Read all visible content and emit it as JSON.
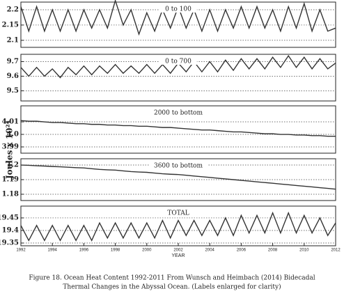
{
  "ylabel": "Joules x 10²⁴",
  "caption": [
    "Figure 18. Ocean Heat Content 1992-2011 From Wunsch and Heimbach (2014) Bidecadal",
    "Thermal Changes in the Abyssal Ocean.  (Labels enlarged for clarity)"
  ],
  "chart_data": [
    {
      "type": "line",
      "title": "0 to 100",
      "color": "#333333",
      "grid": true,
      "x": [
        1992,
        1992.5,
        1993,
        1993.5,
        1994,
        1994.5,
        1995,
        1995.5,
        1996,
        1996.5,
        1997,
        1997.5,
        1998,
        1998.5,
        1999,
        1999.5,
        2000,
        2000.5,
        2001,
        2001.5,
        2002,
        2002.5,
        2003,
        2003.5,
        2004,
        2004.5,
        2005,
        2005.5,
        2006,
        2006.5,
        2007,
        2007.5,
        2008,
        2008.5,
        2009,
        2009.5,
        2010,
        2010.5,
        2011,
        2011.5,
        2012
      ],
      "values": [
        2.21,
        2.13,
        2.21,
        2.13,
        2.2,
        2.13,
        2.2,
        2.13,
        2.2,
        2.14,
        2.2,
        2.14,
        2.23,
        2.15,
        2.2,
        2.12,
        2.19,
        2.13,
        2.2,
        2.14,
        2.21,
        2.14,
        2.2,
        2.13,
        2.2,
        2.13,
        2.2,
        2.14,
        2.21,
        2.14,
        2.21,
        2.14,
        2.2,
        2.13,
        2.21,
        2.14,
        2.22,
        2.13,
        2.2,
        2.13,
        2.14
      ],
      "xlim": [
        1992,
        2012
      ],
      "ylim": [
        2.077,
        2.225
      ],
      "yticks": [
        2.1,
        2.15,
        2.2
      ]
    },
    {
      "type": "line",
      "title": "0 to 700",
      "color": "#333333",
      "grid": true,
      "x": [
        1992,
        1992.5,
        1993,
        1993.5,
        1994,
        1994.5,
        1995,
        1995.5,
        1996,
        1996.5,
        1997,
        1997.5,
        1998,
        1998.5,
        1999,
        1999.5,
        2000,
        2000.5,
        2001,
        2001.5,
        2002,
        2002.5,
        2003,
        2003.5,
        2004,
        2004.5,
        2005,
        2005.5,
        2006,
        2006.5,
        2007,
        2007.5,
        2008,
        2008.5,
        2009,
        2009.5,
        2010,
        2010.5,
        2011,
        2011.5,
        2012
      ],
      "values": [
        9.66,
        9.6,
        9.66,
        9.6,
        9.65,
        9.59,
        9.66,
        9.61,
        9.67,
        9.61,
        9.67,
        9.62,
        9.68,
        9.62,
        9.67,
        9.62,
        9.68,
        9.62,
        9.68,
        9.62,
        9.69,
        9.63,
        9.7,
        9.63,
        9.7,
        9.63,
        9.71,
        9.64,
        9.72,
        9.65,
        9.72,
        9.65,
        9.73,
        9.66,
        9.74,
        9.66,
        9.73,
        9.65,
        9.72,
        9.65,
        9.69
      ],
      "xlim": [
        1992,
        2012
      ],
      "ylim": [
        9.43,
        9.75
      ],
      "yticks": [
        9.5,
        9.6,
        9.7
      ]
    },
    {
      "type": "line",
      "title": "2000 to bottom",
      "color": "#333333",
      "grid": true,
      "x": [
        1992,
        1992.5,
        1993,
        1993.5,
        1994,
        1994.5,
        1995,
        1995.5,
        1996,
        1996.5,
        1997,
        1997.5,
        1998,
        1998.5,
        1999,
        1999.5,
        2000,
        2000.5,
        2001,
        2001.5,
        2002,
        2002.5,
        2003,
        2003.5,
        2004,
        2004.5,
        2005,
        2005.5,
        2006,
        2006.5,
        2007,
        2007.5,
        2008,
        2008.5,
        2009,
        2009.5,
        2010,
        2010.5,
        2011,
        2011.5,
        2012
      ],
      "values": [
        4.011,
        4.0105,
        4.0105,
        4.01,
        4.0095,
        4.0095,
        4.009,
        4.0085,
        4.0085,
        4.008,
        4.008,
        4.0075,
        4.0075,
        4.007,
        4.007,
        4.0065,
        4.0065,
        4.006,
        4.0055,
        4.0055,
        4.005,
        4.0045,
        4.004,
        4.0035,
        4.0035,
        4.003,
        4.0025,
        4.002,
        4.002,
        4.0015,
        4.001,
        4.0005,
        4.0005,
        4.0,
        4.0,
        3.9995,
        3.9995,
        3.999,
        3.999,
        3.9985,
        3.9985
      ],
      "xlim": [
        1992,
        2012
      ],
      "ylim": [
        3.985,
        4.0228
      ],
      "yticks": [
        3.99,
        {
          "value": 4,
          "label": "4.0"
        },
        4.01
      ]
    },
    {
      "type": "line",
      "title": "3600 to bottom",
      "color": "#333333",
      "grid": true,
      "x": [
        1992,
        1992.5,
        1993,
        1993.5,
        1994,
        1994.5,
        1995,
        1995.5,
        1996,
        1996.5,
        1997,
        1997.5,
        1998,
        1998.5,
        1999,
        1999.5,
        2000,
        2000.5,
        2001,
        2001.5,
        2002,
        2002.5,
        2003,
        2003.5,
        2004,
        2004.5,
        2005,
        2005.5,
        2006,
        2006.5,
        2007,
        2007.5,
        2008,
        2008.5,
        2009,
        2009.5,
        2010,
        2010.5,
        2011,
        2011.5,
        2012
      ],
      "values": [
        1.2,
        1.1998,
        1.1995,
        1.1993,
        1.199,
        1.1988,
        1.1985,
        1.1982,
        1.198,
        1.1975,
        1.197,
        1.1967,
        1.1965,
        1.196,
        1.1955,
        1.1952,
        1.195,
        1.1945,
        1.194,
        1.1937,
        1.1935,
        1.193,
        1.1925,
        1.192,
        1.1915,
        1.191,
        1.1905,
        1.19,
        1.1895,
        1.189,
        1.1885,
        1.188,
        1.1875,
        1.187,
        1.1865,
        1.186,
        1.1855,
        1.185,
        1.1845,
        1.184,
        1.1835
      ],
      "xlim": [
        1992,
        2012
      ],
      "ylim": [
        1.1757,
        1.2043
      ],
      "yticks": [
        1.18,
        1.19,
        1.2
      ]
    },
    {
      "type": "line",
      "title": "TOTAL",
      "color": "#333333",
      "grid": true,
      "x": [
        1992,
        1992.5,
        1993,
        1993.5,
        1994,
        1994.5,
        1995,
        1995.5,
        1996,
        1996.5,
        1997,
        1997.5,
        1998,
        1998.5,
        1999,
        1999.5,
        2000,
        2000.5,
        2001,
        2001.5,
        2002,
        2002.5,
        2003,
        2003.5,
        2004,
        2004.5,
        2005,
        2005.5,
        2006,
        2006.5,
        2007,
        2007.5,
        2008,
        2008.5,
        2009,
        2009.5,
        2010,
        2010.5,
        2011,
        2011.5,
        2012
      ],
      "values": [
        19.42,
        19.36,
        19.42,
        19.36,
        19.42,
        19.36,
        19.42,
        19.36,
        19.42,
        19.36,
        19.43,
        19.37,
        19.43,
        19.37,
        19.43,
        19.37,
        19.43,
        19.37,
        19.44,
        19.37,
        19.44,
        19.38,
        19.44,
        19.38,
        19.44,
        19.38,
        19.45,
        19.38,
        19.46,
        19.39,
        19.46,
        19.39,
        19.47,
        19.39,
        19.47,
        19.39,
        19.46,
        19.39,
        19.45,
        19.38,
        19.43
      ],
      "xlim": [
        1992,
        2012
      ],
      "ylim": [
        19.339,
        19.497
      ],
      "yticks": [
        19.35,
        19.4,
        19.45
      ],
      "xticks": [
        1992,
        1994,
        1996,
        1998,
        2000,
        2002,
        2004,
        2006,
        2008,
        2010,
        2012
      ],
      "xlabel": "YEAR"
    }
  ]
}
